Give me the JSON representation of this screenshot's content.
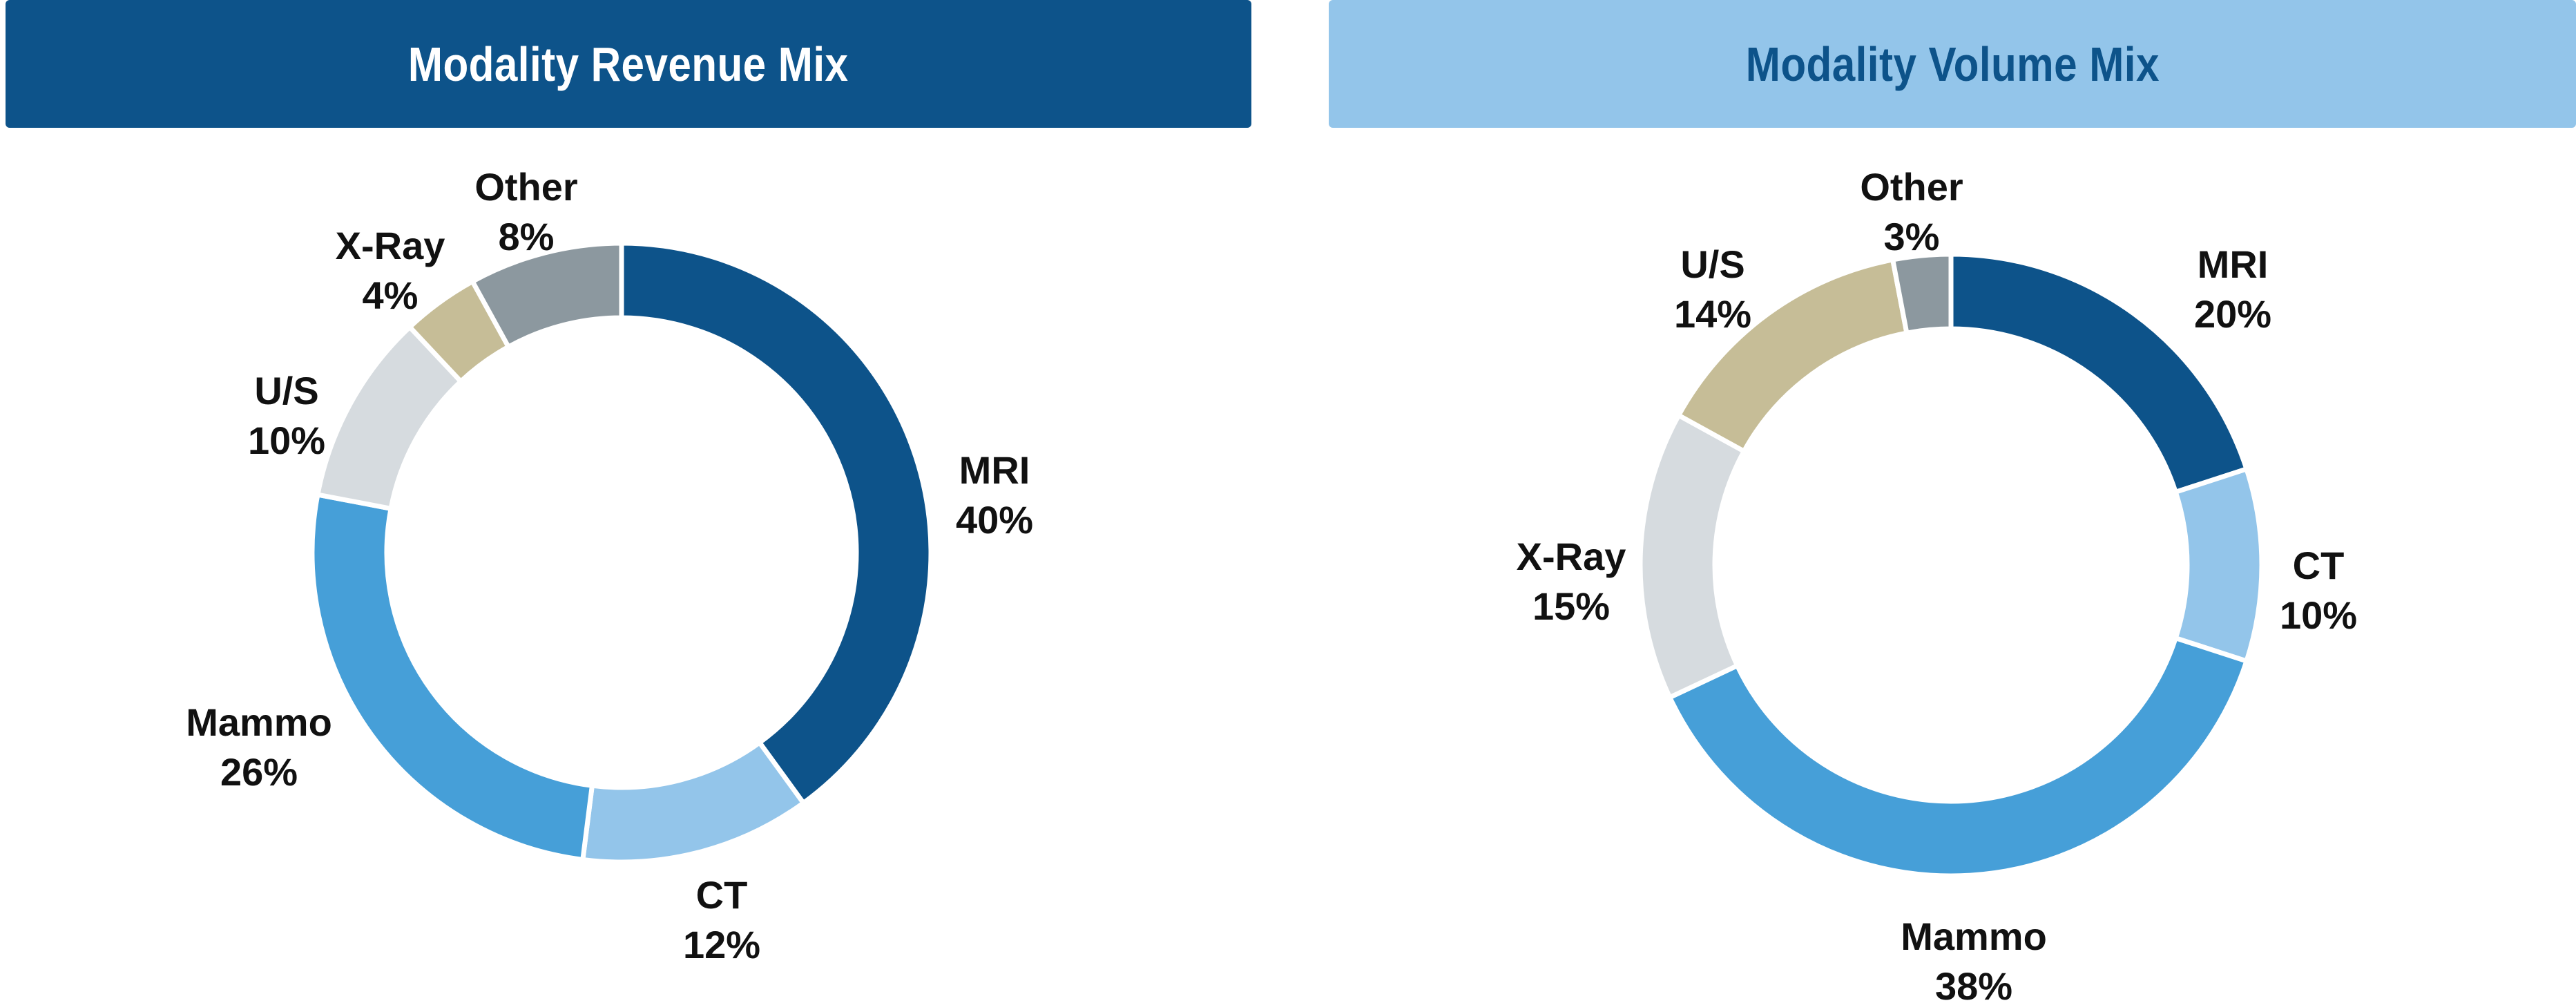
{
  "headers": {
    "left": "Modality Revenue Mix",
    "right": "Modality Volume Mix"
  },
  "colors": {
    "header_left_bg": "#0D538A",
    "header_left_text": "#FFFFFF",
    "header_right_bg": "#93C5EA",
    "header_right_text": "#0D538A",
    "MRI": "#0D538A",
    "CT": "#93C5EA",
    "Mammo": "#469FD8",
    "U/S (revenue)": "#D6DBDF",
    "X-Ray (revenue)": "#C6BD97",
    "X-Ray (volume)": "#D6DBDF",
    "U/S (volume)": "#C6BD97",
    "Other": "#8C989F"
  },
  "chart_data": [
    {
      "type": "pie",
      "variant": "donut",
      "title": "Modality Revenue Mix",
      "categories": [
        "MRI",
        "CT",
        "Mammo",
        "U/S",
        "X-Ray",
        "Other"
      ],
      "values": [
        40,
        12,
        26,
        10,
        4,
        8
      ],
      "labels": [
        "40%",
        "12%",
        "26%",
        "10%",
        "4%",
        "8%"
      ],
      "colors": [
        "#0D538A",
        "#93C5EA",
        "#469FD8",
        "#D6DBDF",
        "#C6BD97",
        "#8C989F"
      ],
      "start": "12 o'clock",
      "direction": "clockwise"
    },
    {
      "type": "pie",
      "variant": "donut",
      "title": "Modality Volume Mix",
      "categories": [
        "MRI",
        "CT",
        "Mammo",
        "X-Ray",
        "U/S",
        "Other"
      ],
      "values": [
        20,
        10,
        38,
        15,
        14,
        3
      ],
      "labels": [
        "20%",
        "10%",
        "38%",
        "15%",
        "14%",
        "3%"
      ],
      "colors": [
        "#0D538A",
        "#93C5EA",
        "#469FD8",
        "#D6DBDF",
        "#C6BD97",
        "#8C989F"
      ],
      "start": "12 o'clock",
      "direction": "clockwise"
    }
  ]
}
